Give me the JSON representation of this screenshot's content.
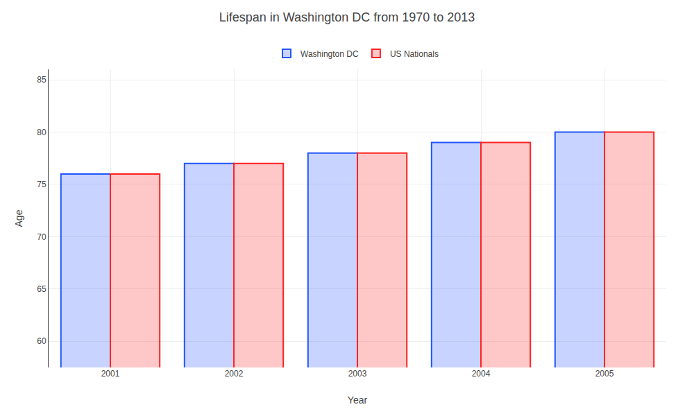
{
  "chart_data": {
    "type": "bar",
    "title": "Lifespan in Washington DC from 1970 to 2013",
    "x_label": "Year",
    "y_label": "Age",
    "categories": [
      "2001",
      "2002",
      "2003",
      "2004",
      "2005"
    ],
    "series": [
      {
        "name": "Washington DC",
        "color": "#2255ff",
        "values": [
          76,
          77,
          78,
          79,
          80
        ]
      },
      {
        "name": "US Nationals",
        "color": "#ff2222",
        "values": [
          76,
          77,
          78,
          79,
          80
        ]
      }
    ],
    "ylim": [
      57.5,
      86
    ],
    "yticks": [
      60,
      65,
      70,
      75,
      80,
      85
    ],
    "grid": true,
    "legend": "top"
  }
}
